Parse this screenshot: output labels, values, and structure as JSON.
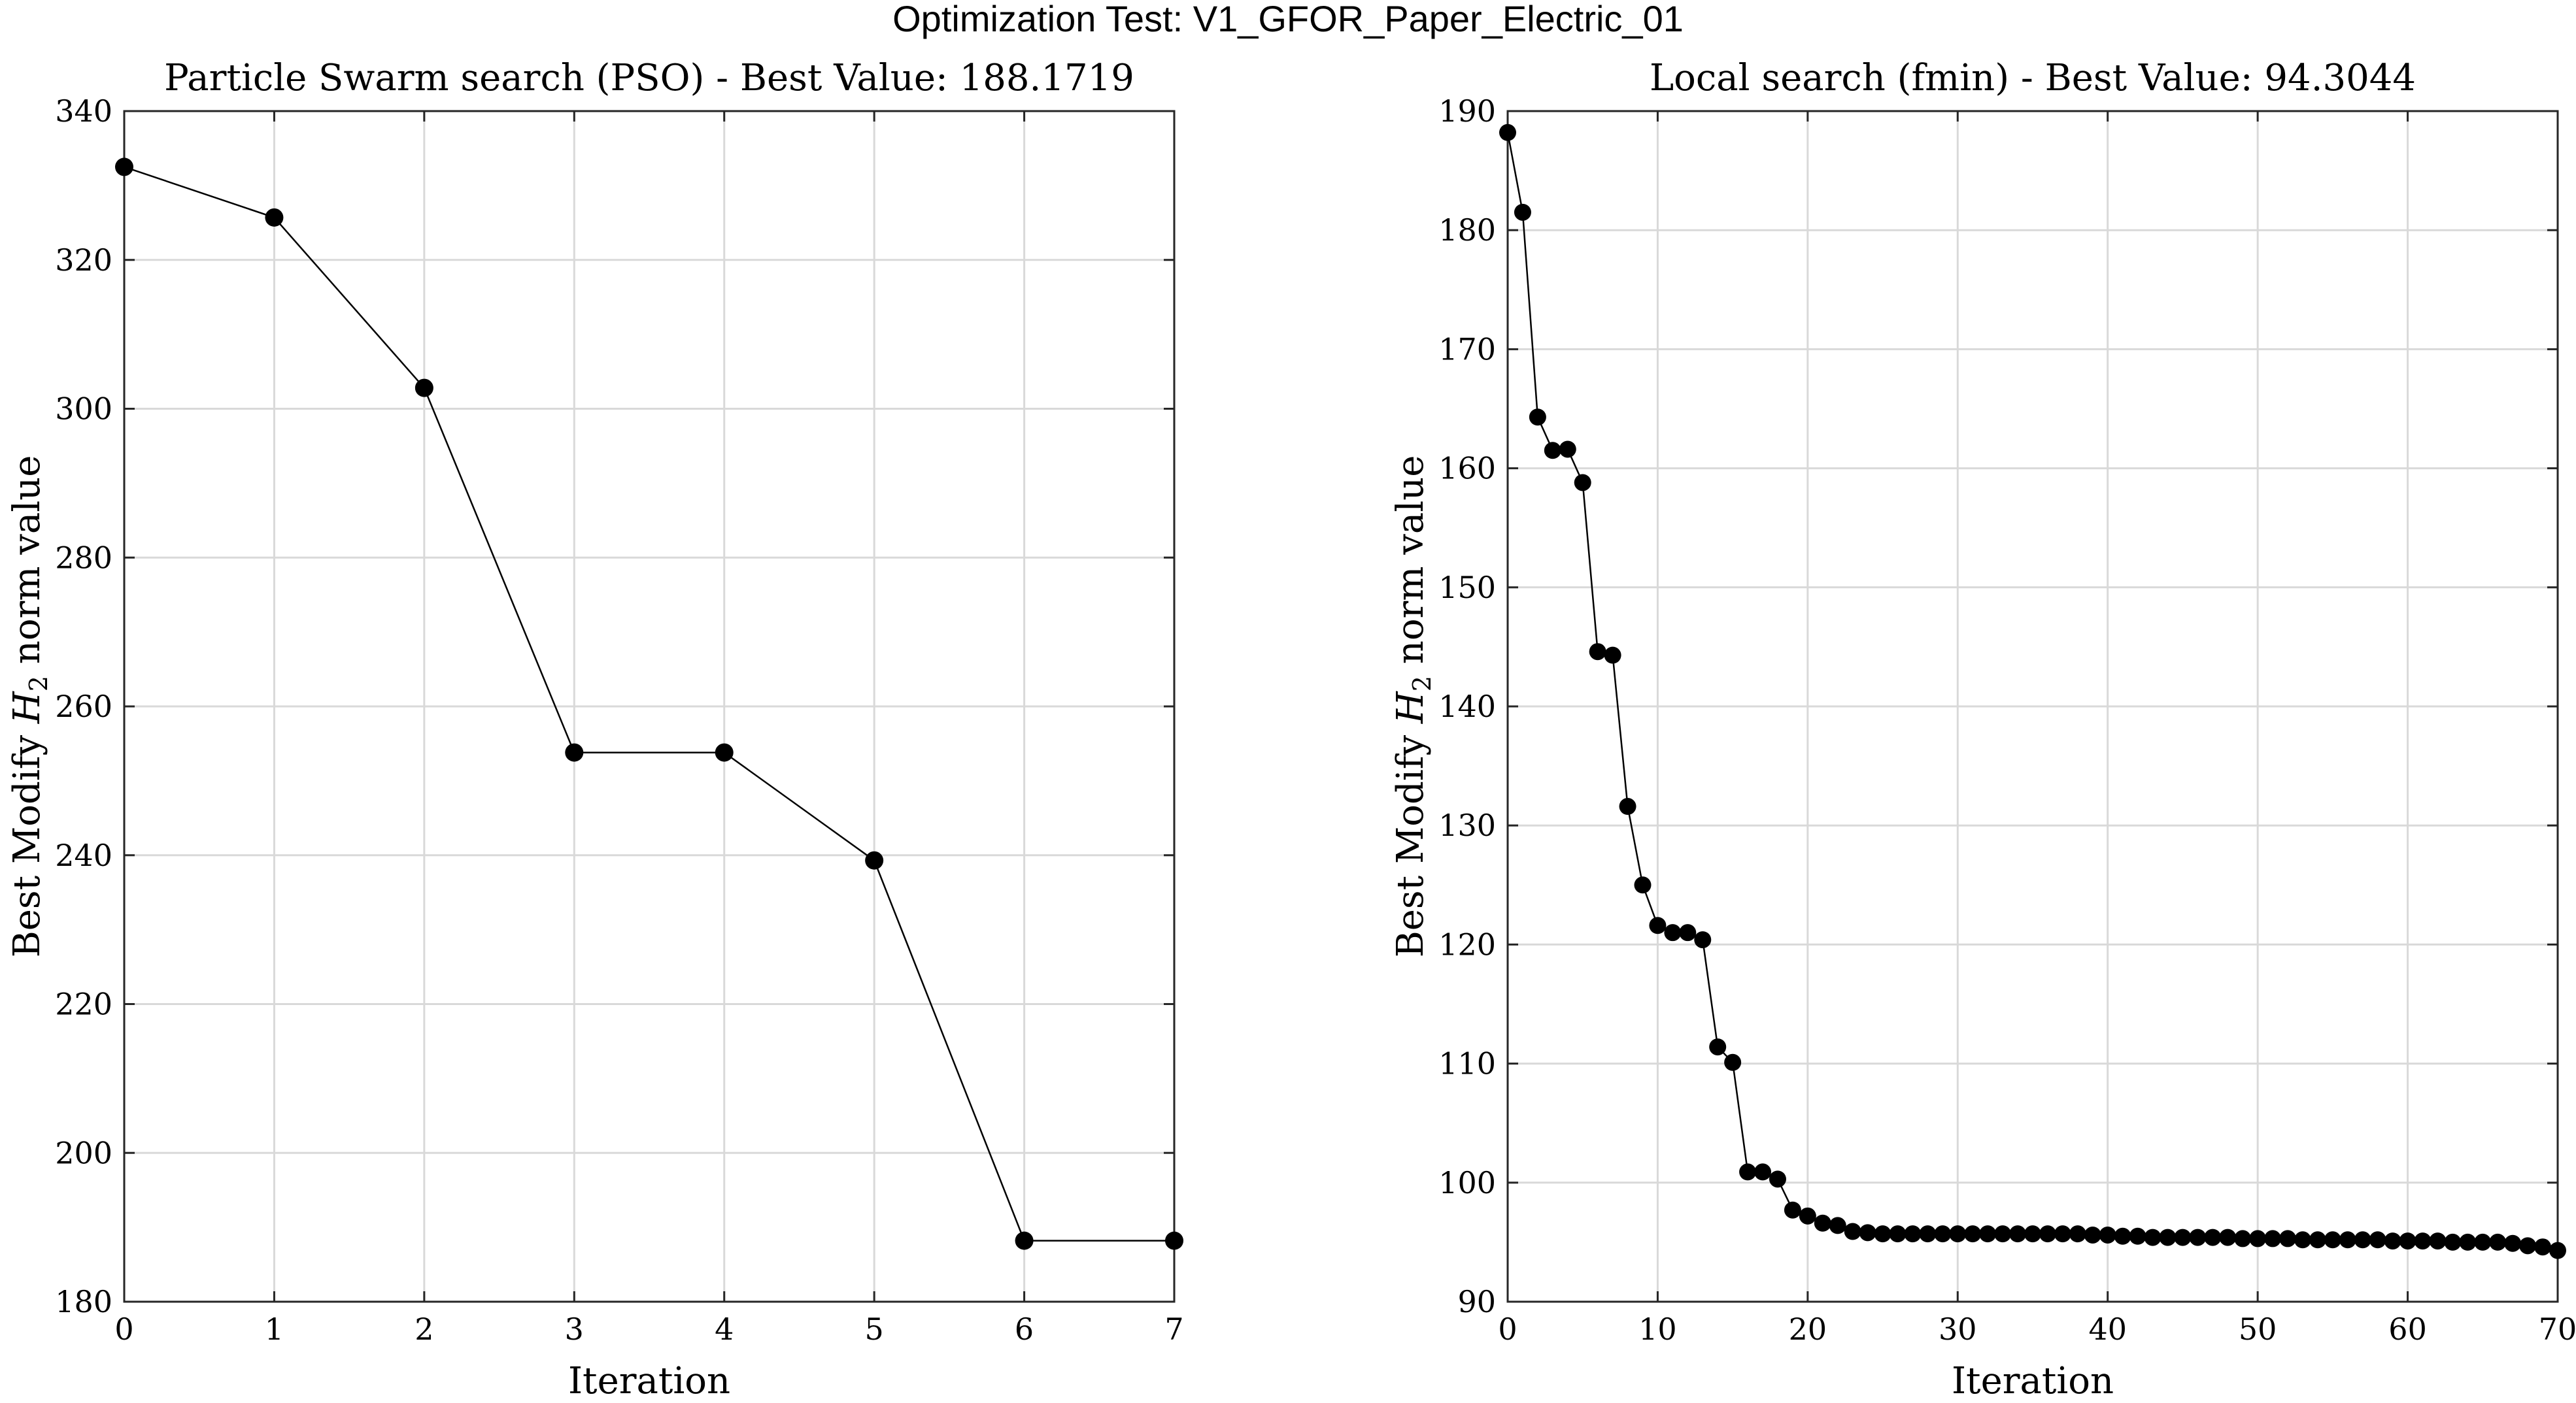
{
  "figure": {
    "title": "Optimization Test: V1_GFOR_Paper_Electric_01"
  },
  "chart_data": [
    {
      "type": "line",
      "title": "Particle Swarm search (PSO) - Best Value: 188.1719",
      "xlabel": "Iteration",
      "ylabel_main": "Best Modify ",
      "ylabel_var": "H",
      "ylabel_sub": "2",
      "ylabel_tail": " norm value",
      "xlim": [
        0,
        7
      ],
      "ylim": [
        180,
        340
      ],
      "xticks": [
        0,
        1,
        2,
        3,
        4,
        5,
        6,
        7
      ],
      "yticks": [
        180,
        200,
        220,
        240,
        260,
        280,
        300,
        320,
        340
      ],
      "grid": true,
      "marker": "filled-circle",
      "x": [
        0,
        1,
        2,
        3,
        4,
        5,
        6,
        7
      ],
      "y": [
        332.5,
        325.7,
        302.8,
        253.8,
        253.8,
        239.3,
        188.2,
        188.2
      ]
    },
    {
      "type": "line",
      "title": "Local search (fmin) - Best Value: 94.3044",
      "xlabel": "Iteration",
      "ylabel_main": "Best Modify ",
      "ylabel_var": "H",
      "ylabel_sub": "2",
      "ylabel_tail": " norm value",
      "xlim": [
        0,
        70
      ],
      "ylim": [
        90,
        190
      ],
      "xticks": [
        0,
        10,
        20,
        30,
        40,
        50,
        60,
        70
      ],
      "yticks": [
        90,
        100,
        110,
        120,
        130,
        140,
        150,
        160,
        170,
        180,
        190
      ],
      "grid": true,
      "marker": "filled-circle",
      "x": [
        0,
        1,
        2,
        3,
        4,
        5,
        6,
        7,
        8,
        9,
        10,
        11,
        12,
        13,
        14,
        15,
        16,
        17,
        18,
        19,
        20,
        21,
        22,
        23,
        24,
        25,
        26,
        27,
        28,
        29,
        30,
        31,
        32,
        33,
        34,
        35,
        36,
        37,
        38,
        39,
        40,
        41,
        42,
        43,
        44,
        45,
        46,
        47,
        48,
        49,
        50,
        51,
        52,
        53,
        54,
        55,
        56,
        57,
        58,
        59,
        60,
        61,
        62,
        63,
        64,
        65,
        66,
        67,
        68,
        69,
        70
      ],
      "y": [
        188.2,
        181.5,
        164.3,
        161.5,
        161.6,
        158.8,
        144.6,
        144.3,
        131.6,
        125.0,
        121.6,
        121.0,
        121.0,
        120.4,
        111.4,
        110.1,
        100.9,
        100.9,
        100.3,
        97.7,
        97.2,
        96.6,
        96.4,
        95.9,
        95.8,
        95.7,
        95.7,
        95.7,
        95.7,
        95.7,
        95.7,
        95.7,
        95.7,
        95.7,
        95.7,
        95.7,
        95.7,
        95.7,
        95.7,
        95.6,
        95.6,
        95.5,
        95.5,
        95.4,
        95.4,
        95.4,
        95.4,
        95.4,
        95.4,
        95.3,
        95.3,
        95.3,
        95.3,
        95.2,
        95.2,
        95.2,
        95.2,
        95.2,
        95.2,
        95.1,
        95.1,
        95.1,
        95.1,
        95.0,
        95.0,
        95.0,
        95.0,
        94.9,
        94.7,
        94.6,
        94.3
      ]
    }
  ]
}
